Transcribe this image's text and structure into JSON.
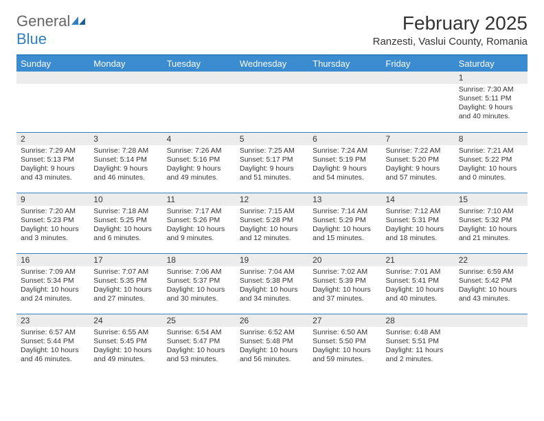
{
  "logo": {
    "word1": "General",
    "word2": "Blue"
  },
  "title": "February 2025",
  "location": "Ranzesti, Vaslui County, Romania",
  "colors": {
    "header_bg": "#3b8bd0",
    "header_text": "#ffffff",
    "line": "#2f7fc1",
    "daynum_bg": "#ececec",
    "text": "#333333",
    "logo_blue": "#2f7fc1",
    "logo_gray": "#666666",
    "page_bg": "#ffffff"
  },
  "weekdays": [
    "Sunday",
    "Monday",
    "Tuesday",
    "Wednesday",
    "Thursday",
    "Friday",
    "Saturday"
  ],
  "weeks": [
    [
      {
        "n": "",
        "t": ""
      },
      {
        "n": "",
        "t": ""
      },
      {
        "n": "",
        "t": ""
      },
      {
        "n": "",
        "t": ""
      },
      {
        "n": "",
        "t": ""
      },
      {
        "n": "",
        "t": ""
      },
      {
        "n": "1",
        "t": "Sunrise: 7:30 AM\nSunset: 5:11 PM\nDaylight: 9 hours and 40 minutes."
      }
    ],
    [
      {
        "n": "2",
        "t": "Sunrise: 7:29 AM\nSunset: 5:13 PM\nDaylight: 9 hours and 43 minutes."
      },
      {
        "n": "3",
        "t": "Sunrise: 7:28 AM\nSunset: 5:14 PM\nDaylight: 9 hours and 46 minutes."
      },
      {
        "n": "4",
        "t": "Sunrise: 7:26 AM\nSunset: 5:16 PM\nDaylight: 9 hours and 49 minutes."
      },
      {
        "n": "5",
        "t": "Sunrise: 7:25 AM\nSunset: 5:17 PM\nDaylight: 9 hours and 51 minutes."
      },
      {
        "n": "6",
        "t": "Sunrise: 7:24 AM\nSunset: 5:19 PM\nDaylight: 9 hours and 54 minutes."
      },
      {
        "n": "7",
        "t": "Sunrise: 7:22 AM\nSunset: 5:20 PM\nDaylight: 9 hours and 57 minutes."
      },
      {
        "n": "8",
        "t": "Sunrise: 7:21 AM\nSunset: 5:22 PM\nDaylight: 10 hours and 0 minutes."
      }
    ],
    [
      {
        "n": "9",
        "t": "Sunrise: 7:20 AM\nSunset: 5:23 PM\nDaylight: 10 hours and 3 minutes."
      },
      {
        "n": "10",
        "t": "Sunrise: 7:18 AM\nSunset: 5:25 PM\nDaylight: 10 hours and 6 minutes."
      },
      {
        "n": "11",
        "t": "Sunrise: 7:17 AM\nSunset: 5:26 PM\nDaylight: 10 hours and 9 minutes."
      },
      {
        "n": "12",
        "t": "Sunrise: 7:15 AM\nSunset: 5:28 PM\nDaylight: 10 hours and 12 minutes."
      },
      {
        "n": "13",
        "t": "Sunrise: 7:14 AM\nSunset: 5:29 PM\nDaylight: 10 hours and 15 minutes."
      },
      {
        "n": "14",
        "t": "Sunrise: 7:12 AM\nSunset: 5:31 PM\nDaylight: 10 hours and 18 minutes."
      },
      {
        "n": "15",
        "t": "Sunrise: 7:10 AM\nSunset: 5:32 PM\nDaylight: 10 hours and 21 minutes."
      }
    ],
    [
      {
        "n": "16",
        "t": "Sunrise: 7:09 AM\nSunset: 5:34 PM\nDaylight: 10 hours and 24 minutes."
      },
      {
        "n": "17",
        "t": "Sunrise: 7:07 AM\nSunset: 5:35 PM\nDaylight: 10 hours and 27 minutes."
      },
      {
        "n": "18",
        "t": "Sunrise: 7:06 AM\nSunset: 5:37 PM\nDaylight: 10 hours and 30 minutes."
      },
      {
        "n": "19",
        "t": "Sunrise: 7:04 AM\nSunset: 5:38 PM\nDaylight: 10 hours and 34 minutes."
      },
      {
        "n": "20",
        "t": "Sunrise: 7:02 AM\nSunset: 5:39 PM\nDaylight: 10 hours and 37 minutes."
      },
      {
        "n": "21",
        "t": "Sunrise: 7:01 AM\nSunset: 5:41 PM\nDaylight: 10 hours and 40 minutes."
      },
      {
        "n": "22",
        "t": "Sunrise: 6:59 AM\nSunset: 5:42 PM\nDaylight: 10 hours and 43 minutes."
      }
    ],
    [
      {
        "n": "23",
        "t": "Sunrise: 6:57 AM\nSunset: 5:44 PM\nDaylight: 10 hours and 46 minutes."
      },
      {
        "n": "24",
        "t": "Sunrise: 6:55 AM\nSunset: 5:45 PM\nDaylight: 10 hours and 49 minutes."
      },
      {
        "n": "25",
        "t": "Sunrise: 6:54 AM\nSunset: 5:47 PM\nDaylight: 10 hours and 53 minutes."
      },
      {
        "n": "26",
        "t": "Sunrise: 6:52 AM\nSunset: 5:48 PM\nDaylight: 10 hours and 56 minutes."
      },
      {
        "n": "27",
        "t": "Sunrise: 6:50 AM\nSunset: 5:50 PM\nDaylight: 10 hours and 59 minutes."
      },
      {
        "n": "28",
        "t": "Sunrise: 6:48 AM\nSunset: 5:51 PM\nDaylight: 11 hours and 2 minutes."
      },
      {
        "n": "",
        "t": ""
      }
    ]
  ]
}
